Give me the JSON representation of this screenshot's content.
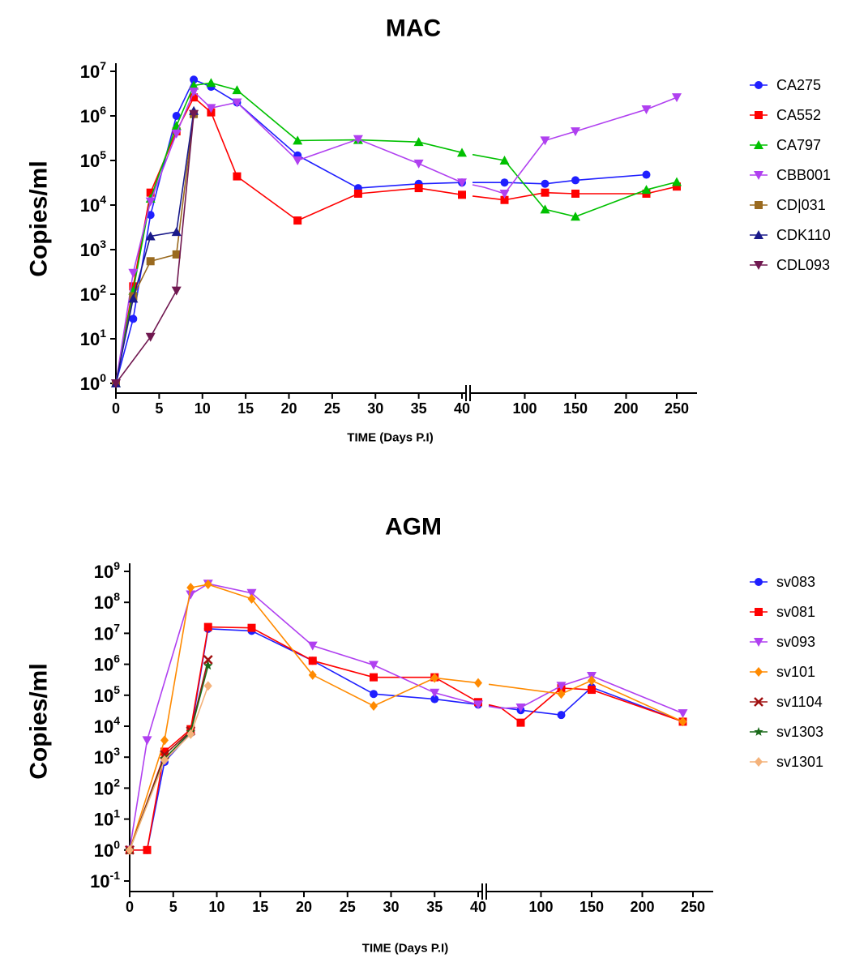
{
  "chart_data": [
    {
      "type": "line",
      "title": "MAC",
      "xlabel": "TIME (Days P.I)",
      "ylabel": "Copies/ml",
      "yscale": "log",
      "ylim": [
        1,
        10000000
      ],
      "yticks": [
        {
          "base": "10",
          "exp": "0"
        },
        {
          "base": "10",
          "exp": "1"
        },
        {
          "base": "10",
          "exp": "2"
        },
        {
          "base": "10",
          "exp": "3"
        },
        {
          "base": "10",
          "exp": "4"
        },
        {
          "base": "10",
          "exp": "5"
        },
        {
          "base": "10",
          "exp": "6"
        },
        {
          "base": "10",
          "exp": "7"
        }
      ],
      "x_segments": [
        {
          "range": [
            0,
            40
          ],
          "ticks": [
            "0",
            "5",
            "10",
            "15",
            "20",
            "25",
            "30",
            "35",
            "40"
          ]
        },
        {
          "range": [
            50,
            270
          ],
          "ticks": [
            "100",
            "150",
            "200",
            "250"
          ]
        }
      ],
      "legend": "right",
      "series": [
        {
          "name": "CA275",
          "color": "#1f1fff",
          "marker": "circle",
          "points": [
            [
              0,
              1
            ],
            [
              2,
              28
            ],
            [
              4,
              6000
            ],
            [
              7,
              1000000
            ],
            [
              9,
              6500000
            ],
            [
              11,
              4500000
            ],
            [
              14,
              2000000
            ],
            [
              21,
              130000
            ],
            [
              28,
              24000
            ],
            [
              35,
              30000
            ],
            [
              40,
              32000
            ],
            [
              80,
              32000
            ],
            [
              120,
              30000
            ],
            [
              150,
              36000
            ],
            [
              220,
              48000
            ]
          ]
        },
        {
          "name": "CA552",
          "color": "#ff0000",
          "marker": "square",
          "points": [
            [
              0,
              1
            ],
            [
              2,
              150
            ],
            [
              4,
              19000
            ],
            [
              7,
              450000
            ],
            [
              9,
              2600000
            ],
            [
              11,
              1200000
            ],
            [
              14,
              44000
            ],
            [
              21,
              4500
            ],
            [
              28,
              18000
            ],
            [
              35,
              24000
            ],
            [
              40,
              17000
            ],
            [
              80,
              13000
            ],
            [
              120,
              19000
            ],
            [
              150,
              18000
            ],
            [
              220,
              18000
            ],
            [
              250,
              26000
            ]
          ]
        },
        {
          "name": "CA797",
          "color": "#00c000",
          "marker": "triangle-up",
          "points": [
            [
              0,
              1
            ],
            [
              2,
              120
            ],
            [
              4,
              14000
            ],
            [
              7,
              600000
            ],
            [
              9,
              4800000
            ],
            [
              11,
              5500000
            ],
            [
              14,
              3800000
            ],
            [
              21,
              280000
            ],
            [
              28,
              290000
            ],
            [
              35,
              260000
            ],
            [
              40,
              150000
            ],
            [
              80,
              100000
            ],
            [
              120,
              8000
            ],
            [
              150,
              5500
            ],
            [
              220,
              22000
            ],
            [
              250,
              33000
            ]
          ]
        },
        {
          "name": "CBB001",
          "color": "#b040f0",
          "marker": "triangle-down",
          "points": [
            [
              0,
              1
            ],
            [
              2,
              300
            ],
            [
              4,
              12000
            ],
            [
              7,
              400000
            ],
            [
              9,
              3500000
            ],
            [
              11,
              1500000
            ],
            [
              14,
              2000000
            ],
            [
              21,
              100000
            ],
            [
              28,
              300000
            ],
            [
              35,
              85000
            ],
            [
              40,
              32000
            ],
            [
              60,
              25000
            ],
            [
              80,
              18000
            ],
            [
              120,
              280000
            ],
            [
              150,
              450000
            ],
            [
              220,
              1400000
            ],
            [
              250,
              2600000
            ]
          ]
        },
        {
          "name": "CD|031",
          "color": "#9a6a1f",
          "marker": "square",
          "points": [
            [
              0,
              1
            ],
            [
              2,
              90
            ],
            [
              4,
              550
            ],
            [
              7,
              780
            ],
            [
              9,
              1100000
            ]
          ]
        },
        {
          "name": "CDK110",
          "color": "#1a1a8a",
          "marker": "triangle-up",
          "points": [
            [
              0,
              1
            ],
            [
              2,
              80
            ],
            [
              4,
              2000
            ],
            [
              7,
              2500
            ],
            [
              9,
              1300000
            ]
          ]
        },
        {
          "name": "CDL093",
          "color": "#701850",
          "marker": "triangle-down",
          "points": [
            [
              0,
              1
            ],
            [
              4,
              11
            ],
            [
              7,
              120
            ],
            [
              9,
              1100000
            ]
          ]
        }
      ]
    },
    {
      "type": "line",
      "title": "AGM",
      "xlabel": "TIME (Days P.I)",
      "ylabel": "Copies/ml",
      "yscale": "log",
      "ylim": [
        0.1,
        1000000000
      ],
      "yticks": [
        {
          "base": "10",
          "exp": "-1"
        },
        {
          "base": "10",
          "exp": "0"
        },
        {
          "base": "10",
          "exp": "1"
        },
        {
          "base": "10",
          "exp": "2"
        },
        {
          "base": "10",
          "exp": "3"
        },
        {
          "base": "10",
          "exp": "4"
        },
        {
          "base": "10",
          "exp": "5"
        },
        {
          "base": "10",
          "exp": "6"
        },
        {
          "base": "10",
          "exp": "7"
        },
        {
          "base": "10",
          "exp": "8"
        },
        {
          "base": "10",
          "exp": "9"
        }
      ],
      "x_segments": [
        {
          "range": [
            0,
            40
          ],
          "ticks": [
            "0",
            "5",
            "10",
            "15",
            "20",
            "25",
            "30",
            "35",
            "40"
          ]
        },
        {
          "range": [
            50,
            270
          ],
          "ticks": [
            "100",
            "150",
            "200",
            "250"
          ]
        }
      ],
      "legend": "right",
      "series": [
        {
          "name": "sv083",
          "color": "#1f1fff",
          "marker": "circle",
          "points": [
            [
              0,
              1
            ],
            [
              2,
              1
            ],
            [
              4,
              700
            ],
            [
              7,
              6000
            ],
            [
              9,
              14000000
            ],
            [
              14,
              12000000
            ],
            [
              21,
              1300000
            ],
            [
              28,
              110000
            ],
            [
              35,
              75000
            ],
            [
              40,
              50000
            ],
            [
              60,
              40000
            ],
            [
              80,
              33000
            ],
            [
              120,
              23000
            ],
            [
              150,
              180000
            ],
            [
              240,
              14000
            ]
          ]
        },
        {
          "name": "sv081",
          "color": "#ff0000",
          "marker": "square",
          "points": [
            [
              0,
              1
            ],
            [
              2,
              1
            ],
            [
              4,
              1500
            ],
            [
              7,
              8000
            ],
            [
              9,
              16000000
            ],
            [
              14,
              15000000
            ],
            [
              21,
              1300000
            ],
            [
              28,
              380000
            ],
            [
              35,
              380000
            ],
            [
              40,
              60000
            ],
            [
              60,
              40000
            ],
            [
              80,
              13000
            ],
            [
              120,
              170000
            ],
            [
              150,
              150000
            ],
            [
              240,
              14000
            ]
          ]
        },
        {
          "name": "sv093",
          "color": "#b040f0",
          "marker": "triangle-down",
          "points": [
            [
              0,
              1
            ],
            [
              2,
              3500
            ],
            [
              7,
              180000000
            ],
            [
              9,
              400000000
            ],
            [
              14,
              200000000
            ],
            [
              21,
              4000000
            ],
            [
              28,
              950000
            ],
            [
              35,
              120000
            ],
            [
              40,
              50000
            ],
            [
              60,
              38000
            ],
            [
              80,
              40000
            ],
            [
              120,
              200000
            ],
            [
              150,
              420000
            ],
            [
              240,
              26000
            ]
          ]
        },
        {
          "name": "sv101",
          "color": "#ff8a00",
          "marker": "diamond",
          "points": [
            [
              0,
              1
            ],
            [
              4,
              3500
            ],
            [
              7,
              300000000
            ],
            [
              9,
              380000000
            ],
            [
              14,
              130000000
            ],
            [
              21,
              450000
            ],
            [
              28,
              45000
            ],
            [
              35,
              360000
            ],
            [
              40,
              250000
            ],
            [
              120,
              110000
            ],
            [
              150,
              300000
            ],
            [
              240,
              14000
            ]
          ]
        },
        {
          "name": "sv1104",
          "color": "#a01010",
          "marker": "x",
          "points": [
            [
              0,
              1
            ],
            [
              4,
              1200
            ],
            [
              7,
              7000
            ],
            [
              9,
              1400000
            ]
          ]
        },
        {
          "name": "sv1303",
          "color": "#1a6a1a",
          "marker": "star",
          "points": [
            [
              0,
              1
            ],
            [
              4,
              900
            ],
            [
              7,
              6500
            ],
            [
              9,
              900000
            ]
          ]
        },
        {
          "name": "sv1301",
          "color": "#f4b27a",
          "marker": "diamond",
          "points": [
            [
              0,
              1
            ],
            [
              4,
              800
            ],
            [
              7,
              5500
            ],
            [
              9,
              200000
            ]
          ]
        }
      ]
    }
  ]
}
